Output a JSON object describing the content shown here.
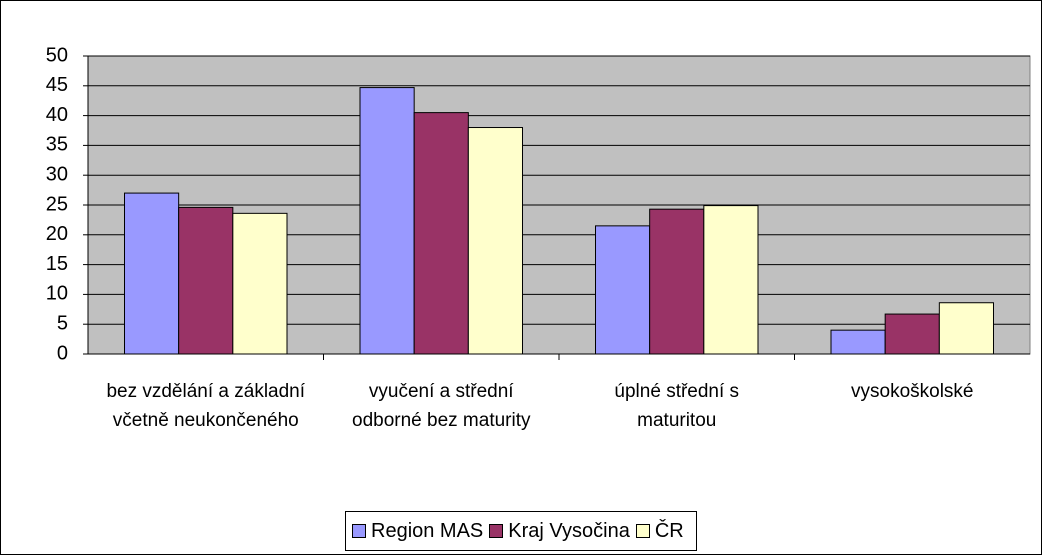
{
  "chart_data": {
    "type": "bar",
    "categories": [
      "bez vzdělání a základní včetně neukončeného",
      "vyučení a střední odborné bez maturity",
      "úplné střední s maturitou",
      "vysokoškolské"
    ],
    "series": [
      {
        "name": "Region MAS",
        "color": "#9999ff",
        "values": [
          27,
          44.7,
          21.5,
          4
        ]
      },
      {
        "name": "Kraj Vysočina",
        "color": "#993366",
        "values": [
          24.6,
          40.5,
          24.3,
          6.7
        ]
      },
      {
        "name": "ČR",
        "color": "#ffffcc",
        "values": [
          23.6,
          38,
          24.9,
          8.6
        ]
      }
    ],
    "ylim": [
      0,
      50
    ],
    "yticks": [
      0,
      5,
      10,
      15,
      20,
      25,
      30,
      35,
      40,
      45,
      50
    ],
    "grid": true,
    "legend": "bottom",
    "plot_background": "#c0c0c0"
  }
}
